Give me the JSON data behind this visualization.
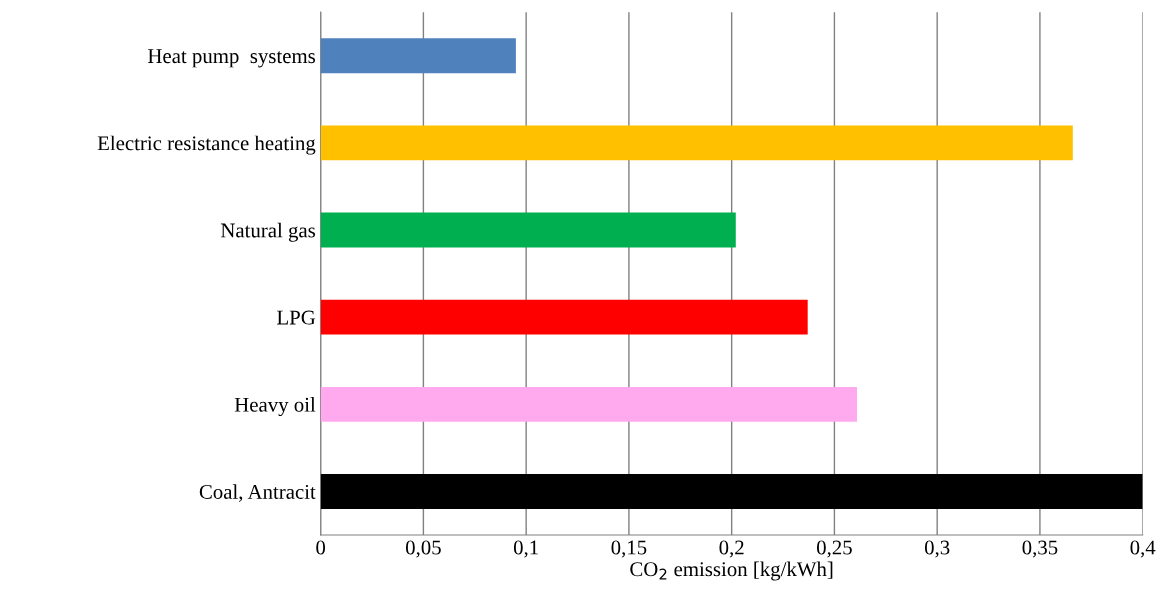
{
  "chart_data": {
    "type": "bar",
    "orientation": "horizontal",
    "xlabel": "CO$_{2}$ emission [kg/kWh]",
    "categories": [
      "Heat pump  systems",
      "Electric resistance heating",
      "Natural gas",
      "LPG",
      "Heavy oil",
      "Coal, Antracit"
    ],
    "values": [
      0.095,
      0.366,
      0.202,
      0.237,
      0.261,
      0.4
    ],
    "colors": [
      "#4f81bd",
      "#ffc000",
      "#00b050",
      "#ff0000",
      "#ffaaee",
      "#000000"
    ],
    "xlim": [
      0,
      0.4
    ],
    "xticks": [
      0,
      {
        "value": 0.05,
        "label": "0,05"
      },
      {
        "value": 0.1,
        "label": "0,1"
      },
      {
        "value": 0.15,
        "label": "0,15"
      },
      {
        "value": 0.2,
        "label": "0,2"
      },
      {
        "value": 0.25,
        "label": "0,25"
      },
      {
        "value": 0.3,
        "label": "0,3"
      },
      {
        "value": 0.35,
        "label": "0,35"
      },
      {
        "value": 0.4,
        "label": "0,4"
      }
    ],
    "grid": "x"
  }
}
